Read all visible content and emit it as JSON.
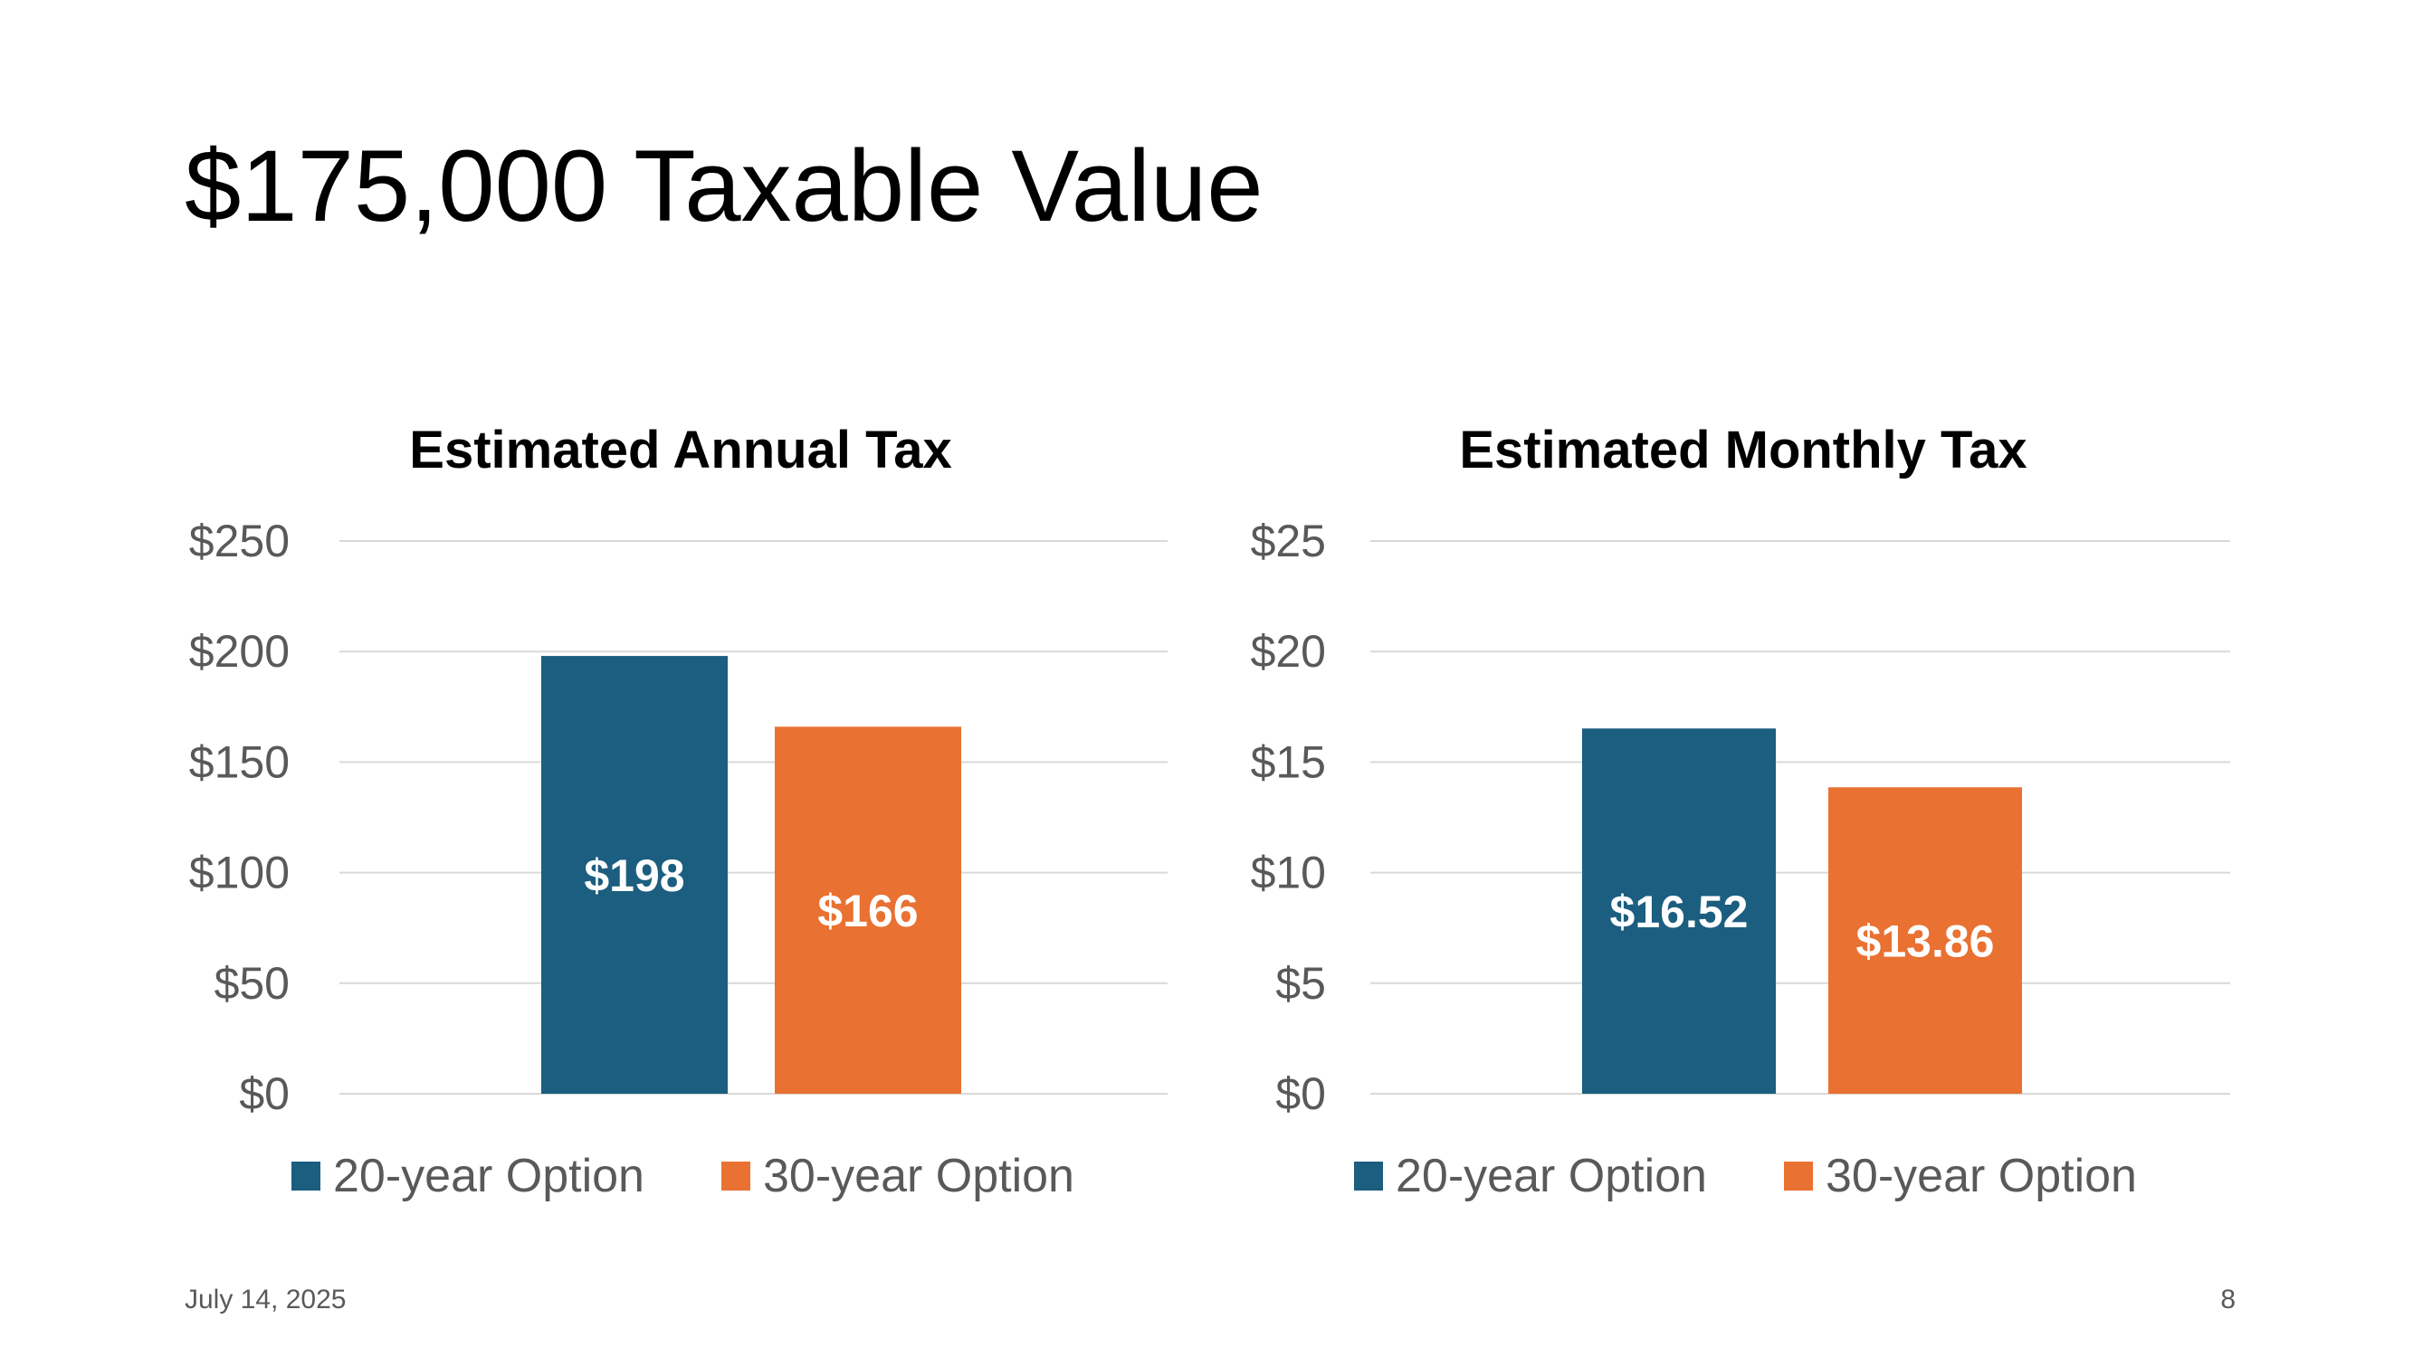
{
  "slide": {
    "title": "$175,000 Taxable Value",
    "date": "July 14, 2025",
    "page_number": "8"
  },
  "colors": {
    "series_20yr": "#1b5e80",
    "series_30yr": "#e97132",
    "gridline": "#d9d9d9",
    "axis_text": "#595959",
    "data_label": "#ffffff"
  },
  "chart_data": [
    {
      "type": "bar",
      "title": "Estimated Annual Tax",
      "categories": [
        ""
      ],
      "series": [
        {
          "name": "20-year Option",
          "values": [
            198
          ],
          "label": "$198"
        },
        {
          "name": "30-year Option",
          "values": [
            166
          ],
          "label": "$166"
        }
      ],
      "ylim": [
        0,
        250
      ],
      "yticks": [
        0,
        50,
        100,
        150,
        200,
        250
      ],
      "ytick_labels": [
        "$0",
        "$50",
        "$100",
        "$150",
        "$200",
        "$250"
      ],
      "grid": true,
      "legend": "bottom"
    },
    {
      "type": "bar",
      "title": "Estimated Monthly Tax",
      "categories": [
        ""
      ],
      "series": [
        {
          "name": "20-year Option",
          "values": [
            16.52
          ],
          "label": "$16.52"
        },
        {
          "name": "30-year Option",
          "values": [
            13.86
          ],
          "label": "$13.86"
        }
      ],
      "ylim": [
        0,
        25
      ],
      "yticks": [
        0,
        5,
        10,
        15,
        20,
        25
      ],
      "ytick_labels": [
        "$0",
        "$5",
        "$10",
        "$15",
        "$20",
        "$25"
      ],
      "grid": true,
      "legend": "bottom"
    }
  ]
}
